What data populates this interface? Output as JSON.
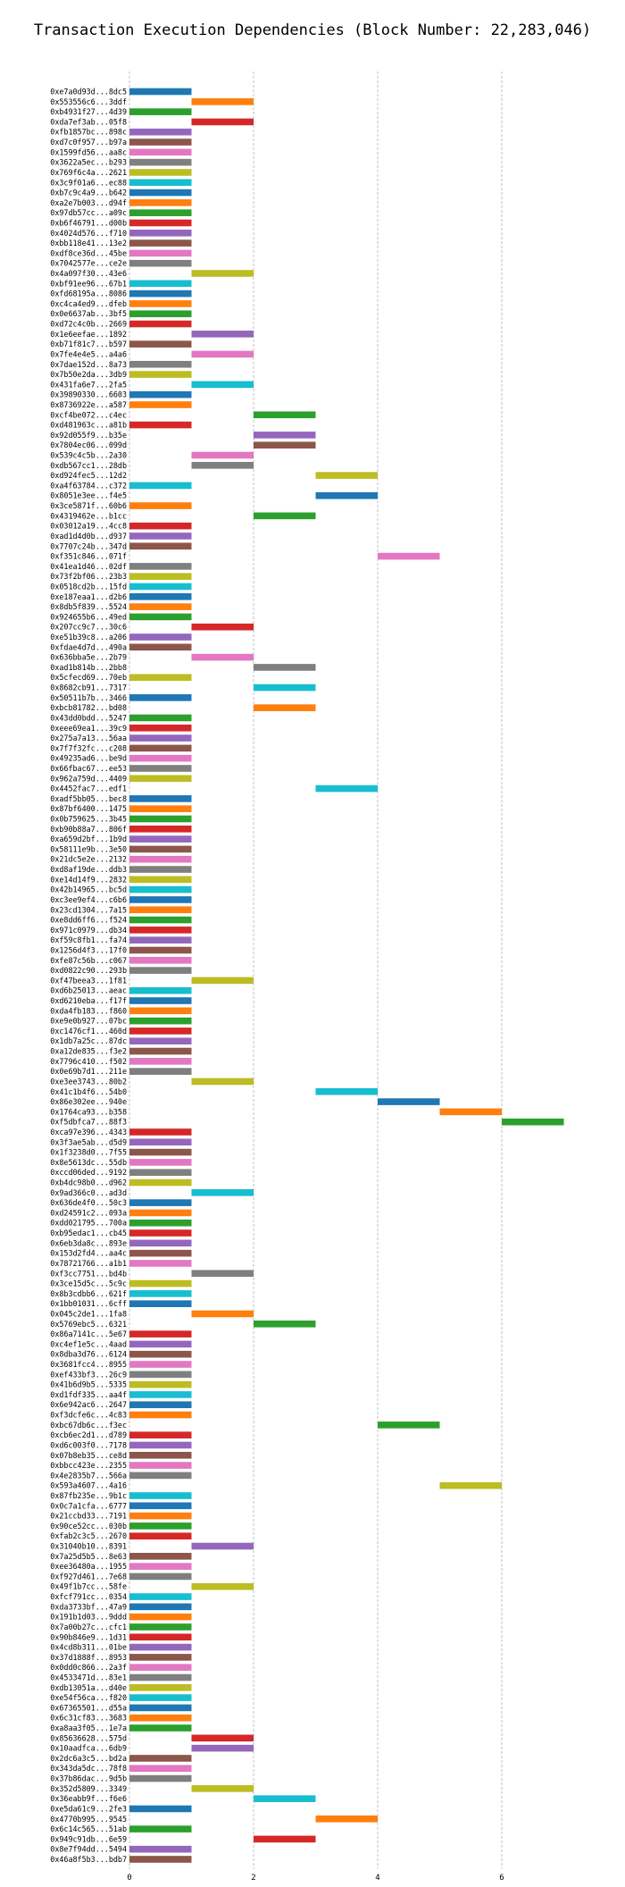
{
  "chart_data": {
    "type": "bar",
    "orientation": "horizontal",
    "title": "Transaction Execution Dependencies (Block Number: 22,283,046)",
    "xlabel": "",
    "ylabel": "",
    "xlim": [
      0,
      7.5
    ],
    "xticks": [
      0,
      2,
      4,
      6
    ],
    "grid": "x, dashed",
    "palette": [
      "#1f77b4",
      "#ff7f0e",
      "#2ca02c",
      "#d62728",
      "#9467bd",
      "#8c564b",
      "#e377c2",
      "#7f7f7f",
      "#bcbd22",
      "#17becf"
    ],
    "transactions": [
      {
        "label": "0xe7a0d93d...8dc5",
        "start": 0
      },
      {
        "label": "0x553556c6...3ddf",
        "start": 1
      },
      {
        "label": "0xb4931f27...4d39",
        "start": 0
      },
      {
        "label": "0xda7ef3ab...05f8",
        "start": 1
      },
      {
        "label": "0xfb1857bc...898c",
        "start": 0
      },
      {
        "label": "0xd7c0f957...b97a",
        "start": 0
      },
      {
        "label": "0x1599fd56...aa8c",
        "start": 0
      },
      {
        "label": "0x3622a5ec...b293",
        "start": 0
      },
      {
        "label": "0x769f6c4a...2621",
        "start": 0
      },
      {
        "label": "0x3c9f01a6...ec88",
        "start": 0
      },
      {
        "label": "0xb7c9c4a9...b642",
        "start": 0
      },
      {
        "label": "0xa2e7b003...d94f",
        "start": 0
      },
      {
        "label": "0x97db57cc...a09c",
        "start": 0
      },
      {
        "label": "0xb6f46791...d00b",
        "start": 0
      },
      {
        "label": "0x4024d576...f710",
        "start": 0
      },
      {
        "label": "0xbb118e41...13e2",
        "start": 0
      },
      {
        "label": "0xdf8ce36d...45be",
        "start": 0
      },
      {
        "label": "0x7042577e...ce2e",
        "start": 0
      },
      {
        "label": "0x4a097f30...43e6",
        "start": 1
      },
      {
        "label": "0xbf91ee96...67b1",
        "start": 0
      },
      {
        "label": "0xfd68195a...8086",
        "start": 0
      },
      {
        "label": "0xc4ca4ed9...dfeb",
        "start": 0
      },
      {
        "label": "0x0e6637ab...3bf5",
        "start": 0
      },
      {
        "label": "0xd72c4c0b...2669",
        "start": 0
      },
      {
        "label": "0x1e6eefae...1892",
        "start": 1
      },
      {
        "label": "0xb71f81c7...b597",
        "start": 0
      },
      {
        "label": "0x7fe4e4e5...a4a6",
        "start": 1
      },
      {
        "label": "0x7dae152d...8a73",
        "start": 0
      },
      {
        "label": "0x7b50e2da...3db9",
        "start": 0
      },
      {
        "label": "0x431fa6e7...2fa5",
        "start": 1
      },
      {
        "label": "0x39890330...6603",
        "start": 0
      },
      {
        "label": "0x8736922e...a587",
        "start": 0
      },
      {
        "label": "0xcf4be072...c4ec",
        "start": 2
      },
      {
        "label": "0xd481963c...a81b",
        "start": 0
      },
      {
        "label": "0x92d055f9...b35e",
        "start": 2
      },
      {
        "label": "0x7804ec06...099d",
        "start": 2
      },
      {
        "label": "0x539c4c5b...2a30",
        "start": 1
      },
      {
        "label": "0xdb567cc1...28db",
        "start": 1
      },
      {
        "label": "0xd924fec5...12d2",
        "start": 3
      },
      {
        "label": "0xa4f63784...c372",
        "start": 0
      },
      {
        "label": "0x8051e3ee...f4e5",
        "start": 3
      },
      {
        "label": "0x3ce5871f...60b6",
        "start": 0
      },
      {
        "label": "0x4319462e...b1cc",
        "start": 2
      },
      {
        "label": "0x03012a19...4cc8",
        "start": 0
      },
      {
        "label": "0xad1d4d0b...d937",
        "start": 0
      },
      {
        "label": "0x7707c24b...347d",
        "start": 0
      },
      {
        "label": "0xf351c846...071f",
        "start": 4
      },
      {
        "label": "0x41ea1d46...02df",
        "start": 0
      },
      {
        "label": "0x73f2bf06...23b3",
        "start": 0
      },
      {
        "label": "0x0518cd2b...15fd",
        "start": 0
      },
      {
        "label": "0xe187eaa1...d2b6",
        "start": 0
      },
      {
        "label": "0x8db5f839...5524",
        "start": 0
      },
      {
        "label": "0x924655b6...49ed",
        "start": 0
      },
      {
        "label": "0x207cc9c7...30c6",
        "start": 1
      },
      {
        "label": "0xe51b39c8...a206",
        "start": 0
      },
      {
        "label": "0xfdae4d7d...490a",
        "start": 0
      },
      {
        "label": "0x636bba5e...2b79",
        "start": 1
      },
      {
        "label": "0xad1b814b...2bb8",
        "start": 2
      },
      {
        "label": "0x5cfecd69...70eb",
        "start": 0
      },
      {
        "label": "0x8682cb91...7317",
        "start": 2
      },
      {
        "label": "0x50511b7b...3466",
        "start": 0
      },
      {
        "label": "0xbcb81782...bd08",
        "start": 2
      },
      {
        "label": "0x43dd0bdd...5247",
        "start": 0
      },
      {
        "label": "0xeee69ea1...39c9",
        "start": 0
      },
      {
        "label": "0x275a7a13...56aa",
        "start": 0
      },
      {
        "label": "0x7f7f32fc...c208",
        "start": 0
      },
      {
        "label": "0x49235ad6...be9d",
        "start": 0
      },
      {
        "label": "0x66fbac67...ee53",
        "start": 0
      },
      {
        "label": "0x962a759d...4409",
        "start": 0
      },
      {
        "label": "0x4452fac7...edf1",
        "start": 3
      },
      {
        "label": "0xadf5bb05...bec8",
        "start": 0
      },
      {
        "label": "0x87bf6400...1475",
        "start": 0
      },
      {
        "label": "0x0b759625...3b45",
        "start": 0
      },
      {
        "label": "0xb90b88a7...806f",
        "start": 0
      },
      {
        "label": "0xa659d2bf...1b9d",
        "start": 0
      },
      {
        "label": "0x58111e9b...3e50",
        "start": 0
      },
      {
        "label": "0x21dc5e2e...2132",
        "start": 0
      },
      {
        "label": "0xd8af19de...ddb3",
        "start": 0
      },
      {
        "label": "0xe14d14f9...2832",
        "start": 0
      },
      {
        "label": "0x42b14965...bc5d",
        "start": 0
      },
      {
        "label": "0xc3ee9ef4...c6b6",
        "start": 0
      },
      {
        "label": "0x23cd1304...7a15",
        "start": 0
      },
      {
        "label": "0xe8dd6ff6...f524",
        "start": 0
      },
      {
        "label": "0x971c0979...db34",
        "start": 0
      },
      {
        "label": "0xf59c8fb1...fa74",
        "start": 0
      },
      {
        "label": "0x1256d4f3...17f0",
        "start": 0
      },
      {
        "label": "0xfe87c56b...c067",
        "start": 0
      },
      {
        "label": "0xd0822c90...293b",
        "start": 0
      },
      {
        "label": "0xf47beea3...1f81",
        "start": 1
      },
      {
        "label": "0xd6b25013...aeac",
        "start": 0
      },
      {
        "label": "0xd6210eba...f17f",
        "start": 0
      },
      {
        "label": "0xda4fb183...f860",
        "start": 0
      },
      {
        "label": "0xe9e0b927...07bc",
        "start": 0
      },
      {
        "label": "0xc1476cf1...460d",
        "start": 0
      },
      {
        "label": "0x1db7a25c...87dc",
        "start": 0
      },
      {
        "label": "0xa12de835...f3e2",
        "start": 0
      },
      {
        "label": "0x7796c410...f502",
        "start": 0
      },
      {
        "label": "0x0e69b7d1...211e",
        "start": 0
      },
      {
        "label": "0xe3ee3743...80b2",
        "start": 1
      },
      {
        "label": "0x41c1b4f6...54b0",
        "start": 3
      },
      {
        "label": "0x86e302ee...940e",
        "start": 4
      },
      {
        "label": "0x1764ca93...b358",
        "start": 5
      },
      {
        "label": "0xf5dbfca7...88f3",
        "start": 6
      },
      {
        "label": "0xca97e396...4343",
        "start": 0
      },
      {
        "label": "0x3f3ae5ab...d5d9",
        "start": 0
      },
      {
        "label": "0x1f3238d0...7f55",
        "start": 0
      },
      {
        "label": "0x8e5613dc...55db",
        "start": 0
      },
      {
        "label": "0xccd06ded...9192",
        "start": 0
      },
      {
        "label": "0xb4dc98b0...d962",
        "start": 0
      },
      {
        "label": "0x9ad366c0...ad3d",
        "start": 1
      },
      {
        "label": "0x636de4f0...50c3",
        "start": 0
      },
      {
        "label": "0xd24591c2...093a",
        "start": 0
      },
      {
        "label": "0xdd021795...700a",
        "start": 0
      },
      {
        "label": "0xb95edac1...cb45",
        "start": 0
      },
      {
        "label": "0x6eb3da8c...893e",
        "start": 0
      },
      {
        "label": "0x153d2fd4...aa4c",
        "start": 0
      },
      {
        "label": "0x78721766...a1b1",
        "start": 0
      },
      {
        "label": "0xf3cc7751...bd4b",
        "start": 1
      },
      {
        "label": "0x3ce15d5c...5c9c",
        "start": 0
      },
      {
        "label": "0x8b3cdbb6...621f",
        "start": 0
      },
      {
        "label": "0x1bb01031...6cff",
        "start": 0
      },
      {
        "label": "0x045c2de1...1fa8",
        "start": 1
      },
      {
        "label": "0x5769ebc5...6321",
        "start": 2
      },
      {
        "label": "0x86a7141c...5e67",
        "start": 0
      },
      {
        "label": "0xc4ef1e5c...4aad",
        "start": 0
      },
      {
        "label": "0x8dba3d76...6124",
        "start": 0
      },
      {
        "label": "0x3681fcc4...8955",
        "start": 0
      },
      {
        "label": "0xef433bf3...26c9",
        "start": 0
      },
      {
        "label": "0x41b6d9b5...5335",
        "start": 0
      },
      {
        "label": "0xd1fdf335...aa4f",
        "start": 0
      },
      {
        "label": "0x6e942ac6...2647",
        "start": 0
      },
      {
        "label": "0xf3dcfe6c...4c83",
        "start": 0
      },
      {
        "label": "0xbc67db6c...f3ec",
        "start": 4
      },
      {
        "label": "0xcb6ec2d1...d789",
        "start": 0
      },
      {
        "label": "0xd6c003f0...7178",
        "start": 0
      },
      {
        "label": "0x07b8eb35...ce8d",
        "start": 0
      },
      {
        "label": "0xbbcc423e...2355",
        "start": 0
      },
      {
        "label": "0x4e2835b7...566a",
        "start": 0
      },
      {
        "label": "0x593a4607...4a16",
        "start": 5
      },
      {
        "label": "0x87fb235e...9b1c",
        "start": 0
      },
      {
        "label": "0x0c7a1cfa...6777",
        "start": 0
      },
      {
        "label": "0x21ccbd33...7191",
        "start": 0
      },
      {
        "label": "0x90ce52cc...030b",
        "start": 0
      },
      {
        "label": "0xfab2c3c5...2670",
        "start": 0
      },
      {
        "label": "0x31040b10...8391",
        "start": 1
      },
      {
        "label": "0x7a25d5b5...8e63",
        "start": 0
      },
      {
        "label": "0xee36480a...1955",
        "start": 0
      },
      {
        "label": "0xf927d461...7e68",
        "start": 0
      },
      {
        "label": "0x49f1b7cc...58fe",
        "start": 1
      },
      {
        "label": "0xfcf791cc...0354",
        "start": 0
      },
      {
        "label": "0xda3733bf...47a9",
        "start": 0
      },
      {
        "label": "0x191b1d03...9ddd",
        "start": 0
      },
      {
        "label": "0x7a00b27c...cfc1",
        "start": 0
      },
      {
        "label": "0x90b846e9...1d31",
        "start": 0
      },
      {
        "label": "0x4cd8b311...01be",
        "start": 0
      },
      {
        "label": "0x37d1888f...8953",
        "start": 0
      },
      {
        "label": "0x0dd0c866...2a3f",
        "start": 0
      },
      {
        "label": "0x4533471d...83e1",
        "start": 0
      },
      {
        "label": "0xdb13051a...d40e",
        "start": 0
      },
      {
        "label": "0xe54f56ca...f820",
        "start": 0
      },
      {
        "label": "0x67365501...d55a",
        "start": 0
      },
      {
        "label": "0x6c31cf83...3683",
        "start": 0
      },
      {
        "label": "0xa8aa3f05...1e7a",
        "start": 0
      },
      {
        "label": "0x85636628...575d",
        "start": 1
      },
      {
        "label": "0x10aadfca...6db9",
        "start": 1
      },
      {
        "label": "0x2dc6a3c5...bd2a",
        "start": 0
      },
      {
        "label": "0x343da5dc...78f8",
        "start": 0
      },
      {
        "label": "0x37b86dac...9d5b",
        "start": 0
      },
      {
        "label": "0x352d5809...3349",
        "start": 1
      },
      {
        "label": "0x36eabb9f...f6e6",
        "start": 2
      },
      {
        "label": "0xe5da61c9...2fe3",
        "start": 0
      },
      {
        "label": "0x4770b995...9545",
        "start": 3
      },
      {
        "label": "0x6c14c565...51ab",
        "start": 0
      },
      {
        "label": "0x949c91db...6e59",
        "start": 2
      },
      {
        "label": "0x8e7f94dd...5494",
        "start": 0
      },
      {
        "label": "0x46a8f5b3...bdb7",
        "start": 0
      }
    ]
  }
}
